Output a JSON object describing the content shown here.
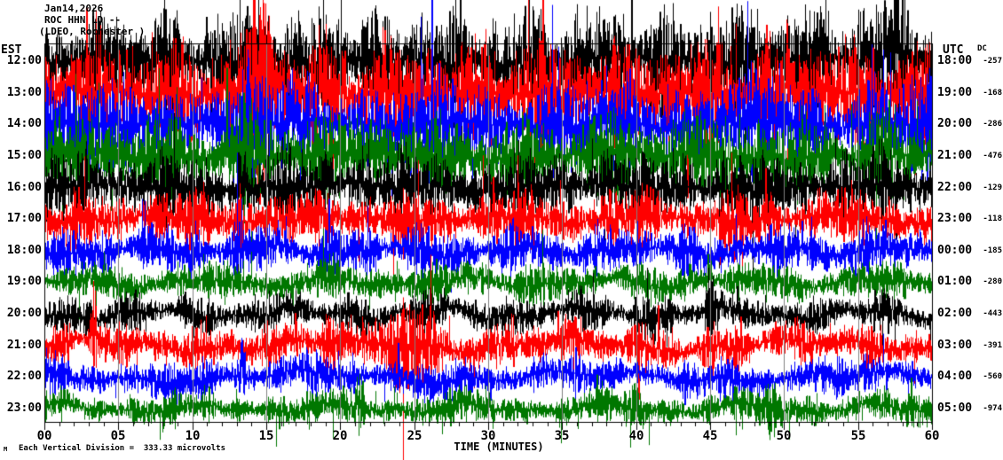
{
  "header": {
    "date": "Jan14,2026",
    "station": "ROC HHN LD --",
    "site": "(LDEO, Rochester )"
  },
  "left_axis": {
    "label": "EST"
  },
  "right_axis": {
    "label": "UTC",
    "dc_label": "DC"
  },
  "x_axis": {
    "title": "TIME (MINUTES)",
    "ticks": [
      "00",
      "05",
      "10",
      "15",
      "20",
      "25",
      "30",
      "35",
      "40",
      "45",
      "50",
      "55",
      "60"
    ]
  },
  "footer": {
    "scale_note": "Each Vertical Division =  333.33 microvolts",
    "corner_mark": "M"
  },
  "palette": {
    "black": "#000000",
    "red": "#ff0000",
    "blue": "#0000ff",
    "green": "#007700",
    "grid": "#808080",
    "axis": "#000000"
  },
  "chart_data": {
    "type": "line",
    "kind": "helicorder-seismogram",
    "station": "ROC HHN LD",
    "date": "Jan14,2026",
    "minutes_per_line": 60,
    "x_range_minutes": [
      0,
      60
    ],
    "vertical_division_microvolts": 333.33,
    "color_cycle": [
      "black",
      "red",
      "blue",
      "green"
    ],
    "rows": [
      {
        "est": "12:00",
        "utc": "18:00",
        "dc": -257,
        "color": "black",
        "amp": 22,
        "wander": 3,
        "style": "dense",
        "events": [
          {
            "m": 14.8,
            "w": 0.5,
            "gain": 0.7,
            "lift": 8
          },
          {
            "m": 57.6,
            "w": 1.0,
            "gain": 0.7,
            "lift": 10
          }
        ]
      },
      {
        "est": "13:00",
        "utc": "19:00",
        "dc": -168,
        "color": "red",
        "amp": 23,
        "wander": 3,
        "style": "dense",
        "events": [
          {
            "m": 14.6,
            "w": 0.7,
            "gain": 1.9,
            "lift": 18
          },
          {
            "m": 33.7,
            "w": 0.12,
            "gain": 2.4,
            "lift": 25
          },
          {
            "m": 50.2,
            "w": 0.1,
            "gain": 1.4,
            "lift": 12
          }
        ]
      },
      {
        "est": "14:00",
        "utc": "20:00",
        "dc": -286,
        "color": "blue",
        "amp": 20,
        "wander": 3,
        "style": "dense",
        "events": [
          {
            "m": 13.9,
            "w": 0.3,
            "gain": 0.9,
            "lift": 6
          }
        ]
      },
      {
        "est": "15:00",
        "utc": "21:00",
        "dc": -476,
        "color": "green",
        "amp": 18,
        "wander": 3,
        "style": "dense",
        "events": [
          {
            "m": 13.6,
            "w": 0.3,
            "gain": 0.8,
            "lift": 6
          }
        ]
      },
      {
        "est": "16:00",
        "utc": "22:00",
        "dc": -129,
        "color": "black",
        "amp": 15,
        "wander": 3,
        "style": "dense",
        "events": [
          {
            "m": 13.3,
            "w": 0.25,
            "gain": 1.0,
            "lift": 6
          }
        ]
      },
      {
        "est": "17:00",
        "utc": "23:00",
        "dc": -118,
        "color": "red",
        "amp": 12,
        "wander": 3,
        "style": "dense",
        "events": [
          {
            "m": 13.1,
            "w": 0.2,
            "gain": 0.9,
            "lift": 5
          }
        ]
      },
      {
        "est": "18:00",
        "utc": "00:00",
        "dc": -185,
        "color": "blue",
        "amp": 10,
        "wander": 4,
        "style": "wavy",
        "events": [
          {
            "m": 13.0,
            "w": 0.3,
            "gain": 0.9,
            "lift": 4
          }
        ]
      },
      {
        "est": "19:00",
        "utc": "01:00",
        "dc": -280,
        "color": "green",
        "amp": 8,
        "wander": 4,
        "style": "wavy",
        "events": [
          {
            "m": 44.9,
            "w": 0.15,
            "gain": 1.6,
            "lift": 8
          }
        ]
      },
      {
        "est": "20:00",
        "utc": "02:00",
        "dc": -443,
        "color": "black",
        "amp": 8,
        "wander": 5,
        "style": "wavy",
        "events": [
          {
            "m": 45.0,
            "w": 0.25,
            "gain": 1.8,
            "lift": 12
          },
          {
            "m": 3.0,
            "w": 0.2,
            "gain": 1.0,
            "lift": 5
          }
        ]
      },
      {
        "est": "21:00",
        "utc": "03:00",
        "dc": -391,
        "color": "red",
        "amp": 9,
        "wander": 5,
        "style": "wavy",
        "events": [
          {
            "m": 3.3,
            "w": 0.2,
            "gain": 2.0,
            "lift": 14
          },
          {
            "m": 24.5,
            "w": 2.0,
            "gain": 1.8,
            "lift": 2
          },
          {
            "m": 19.0,
            "w": 0.6,
            "gain": 0.9,
            "lift": 2
          }
        ]
      },
      {
        "est": "22:00",
        "utc": "04:00",
        "dc": -560,
        "color": "blue",
        "amp": 8,
        "wander": 5,
        "style": "wavy",
        "events": [
          {
            "m": 13.3,
            "w": 0.25,
            "gain": 1.4,
            "lift": 8
          }
        ]
      },
      {
        "est": "23:00",
        "utc": "05:00",
        "dc": -974,
        "color": "green",
        "amp": 7,
        "wander": 4,
        "style": "wavy",
        "events": [
          {
            "m": 21.3,
            "w": 0.3,
            "gain": 1.6,
            "lift": 7
          },
          {
            "m": 49.0,
            "w": 0.4,
            "gain": 1.2,
            "lift": 4
          },
          {
            "m": 40.0,
            "w": 0.3,
            "gain": 1.0,
            "lift": 3
          }
        ]
      }
    ]
  }
}
